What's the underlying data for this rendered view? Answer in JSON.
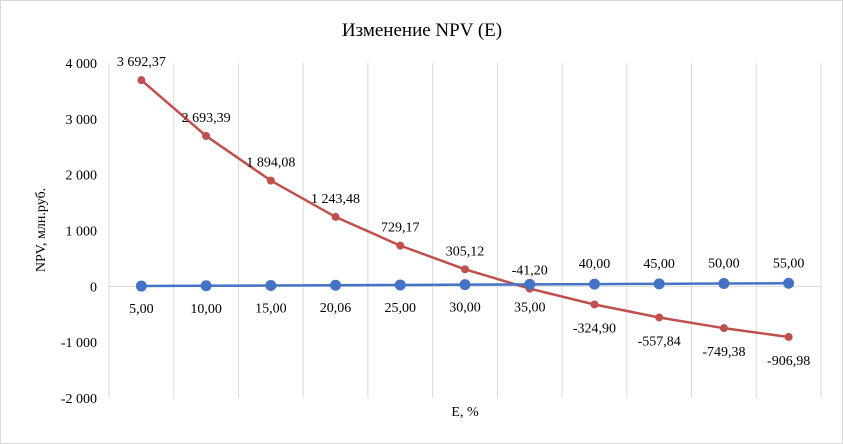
{
  "chart_data": {
    "type": "line",
    "title": "Изменение NPV (E)",
    "xlabel": "E, %",
    "ylabel": "NPV, млн.руб.",
    "ylim": [
      -2000,
      4000
    ],
    "yticks": [
      -2000,
      -1000,
      0,
      1000,
      2000,
      3000,
      4000
    ],
    "ytick_labels": [
      "-2 000",
      "-1 000",
      "0",
      "1 000",
      "2 000",
      "3 000",
      "4 000"
    ],
    "grid": "vertical",
    "legend": "none",
    "categories_count": 11,
    "series": [
      {
        "color": "#4472c4",
        "marker": "circle-large",
        "values": [
          5.0,
          10.0,
          15.0,
          20.06,
          25.0,
          30.0,
          35.0,
          40.0,
          45.0,
          50.0,
          55.0
        ],
        "labels": [
          "5,00",
          "10,00",
          "15,00",
          "20,06",
          "25,00",
          "30,00",
          "35,00",
          "40,00",
          "45,00",
          "50,00",
          "55,00"
        ]
      },
      {
        "color": "#c0504d",
        "marker": "circle-small",
        "values": [
          3692.37,
          2693.39,
          1894.08,
          1243.48,
          729.17,
          305.12,
          -41.2,
          -324.9,
          -557.84,
          -749.38,
          -906.98
        ],
        "labels": [
          "3 692,37",
          "2 693,39",
          "1 894,08",
          "1 243,48",
          "729,17",
          "305,12",
          "-41,20",
          "-324,90",
          "-557,84",
          "-749,38",
          "-906,98"
        ]
      }
    ]
  }
}
